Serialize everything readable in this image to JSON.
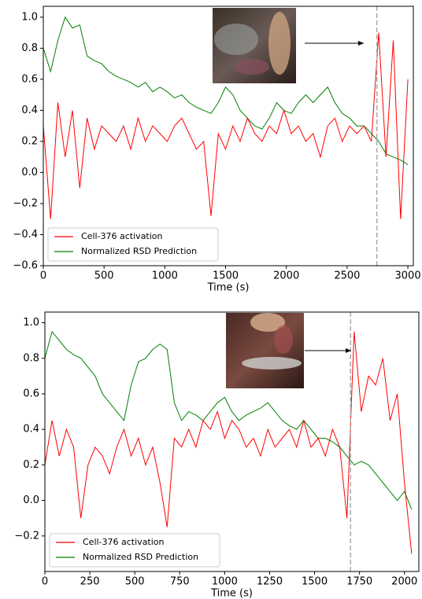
{
  "chart_data": [
    {
      "type": "line",
      "x_label": "Time (s)",
      "x": [
        0,
        60,
        120,
        180,
        240,
        300,
        360,
        420,
        480,
        540,
        600,
        660,
        720,
        780,
        840,
        900,
        960,
        1020,
        1080,
        1140,
        1200,
        1260,
        1320,
        1380,
        1440,
        1500,
        1560,
        1620,
        1680,
        1740,
        1800,
        1860,
        1920,
        1980,
        2040,
        2100,
        2160,
        2220,
        2280,
        2340,
        2400,
        2460,
        2520,
        2580,
        2640,
        2700,
        2760,
        2820,
        2880,
        2940,
        3000
      ],
      "series": [
        {
          "name": "Cell-376 activation",
          "color": "#ff0000",
          "values": [
            0.3,
            -0.3,
            0.45,
            0.1,
            0.4,
            -0.1,
            0.35,
            0.15,
            0.3,
            0.25,
            0.2,
            0.3,
            0.15,
            0.35,
            0.2,
            0.3,
            0.25,
            0.2,
            0.3,
            0.35,
            0.25,
            0.15,
            0.2,
            -0.28,
            0.25,
            0.15,
            0.3,
            0.2,
            0.35,
            0.25,
            0.2,
            0.3,
            0.25,
            0.4,
            0.25,
            0.3,
            0.2,
            0.25,
            0.1,
            0.3,
            0.35,
            0.2,
            0.3,
            0.25,
            0.3,
            0.2,
            0.9,
            0.1,
            0.85,
            -0.3,
            0.6
          ]
        },
        {
          "name": "Normalized RSD Prediction",
          "color": "#008000",
          "values": [
            0.8,
            0.65,
            0.85,
            1.0,
            0.93,
            0.95,
            0.75,
            0.72,
            0.7,
            0.65,
            0.62,
            0.6,
            0.58,
            0.55,
            0.58,
            0.52,
            0.55,
            0.52,
            0.48,
            0.5,
            0.45,
            0.42,
            0.4,
            0.38,
            0.45,
            0.55,
            0.5,
            0.4,
            0.35,
            0.3,
            0.28,
            0.35,
            0.45,
            0.4,
            0.38,
            0.45,
            0.5,
            0.45,
            0.5,
            0.55,
            0.45,
            0.38,
            0.35,
            0.3,
            0.3,
            0.25,
            0.2,
            0.12,
            0.1,
            0.08,
            0.05
          ]
        }
      ],
      "vline": 2745,
      "xlim": [
        0,
        3045
      ],
      "ylim": [
        -0.6,
        1.07
      ],
      "xticks": [
        0,
        500,
        1000,
        1500,
        2000,
        2500,
        3000
      ],
      "yticks": [
        {
          "value": -0.6,
          "label": "−0.6"
        },
        {
          "value": -0.4,
          "label": "−0.4"
        },
        {
          "value": -0.2,
          "label": "−0.2"
        },
        {
          "value": 0,
          "label": "0.0"
        },
        0.2,
        0.4,
        0.6,
        0.8,
        {
          "value": 1,
          "label": "1.0"
        }
      ],
      "legend": "lower left"
    },
    {
      "type": "line",
      "x_label": "Time (s)",
      "x": [
        0,
        40,
        80,
        120,
        160,
        200,
        240,
        280,
        320,
        360,
        400,
        440,
        480,
        520,
        560,
        600,
        640,
        680,
        720,
        760,
        800,
        840,
        880,
        920,
        960,
        1000,
        1040,
        1080,
        1120,
        1160,
        1200,
        1240,
        1280,
        1320,
        1360,
        1400,
        1440,
        1480,
        1520,
        1560,
        1600,
        1640,
        1680,
        1720,
        1760,
        1800,
        1840,
        1880,
        1920,
        1960,
        2000,
        2040
      ],
      "series": [
        {
          "name": "Cell-376 activation",
          "color": "#ff0000",
          "values": [
            0.2,
            0.45,
            0.25,
            0.4,
            0.3,
            -0.1,
            0.2,
            0.3,
            0.25,
            0.15,
            0.3,
            0.4,
            0.25,
            0.35,
            0.2,
            0.3,
            0.1,
            -0.15,
            0.35,
            0.3,
            0.4,
            0.3,
            0.45,
            0.4,
            0.5,
            0.35,
            0.45,
            0.4,
            0.3,
            0.35,
            0.25,
            0.4,
            0.3,
            0.35,
            0.4,
            0.3,
            0.45,
            0.3,
            0.35,
            0.25,
            0.4,
            0.3,
            -0.1,
            0.95,
            0.5,
            0.7,
            0.65,
            0.8,
            0.45,
            0.6,
            0.1,
            -0.3
          ]
        },
        {
          "name": "Normalized RSD Prediction",
          "color": "#008000",
          "values": [
            0.8,
            0.95,
            0.9,
            0.85,
            0.82,
            0.8,
            0.75,
            0.7,
            0.6,
            0.55,
            0.5,
            0.45,
            0.65,
            0.78,
            0.8,
            0.85,
            0.88,
            0.85,
            0.55,
            0.45,
            0.5,
            0.48,
            0.45,
            0.5,
            0.55,
            0.58,
            0.5,
            0.45,
            0.48,
            0.5,
            0.52,
            0.55,
            0.5,
            0.45,
            0.42,
            0.4,
            0.45,
            0.4,
            0.35,
            0.35,
            0.33,
            0.3,
            0.25,
            0.2,
            0.22,
            0.2,
            0.15,
            0.1,
            0.05,
            0.0,
            0.05,
            -0.05
          ]
        }
      ],
      "vline": 1700,
      "xlim": [
        0,
        2080
      ],
      "ylim": [
        -0.4,
        1.06
      ],
      "xticks": [
        0,
        250,
        500,
        750,
        1000,
        1250,
        1500,
        1750,
        2000
      ],
      "yticks": [
        {
          "value": -0.2,
          "label": "−0.2"
        },
        {
          "value": 0,
          "label": "0.0"
        },
        0.2,
        0.4,
        0.6,
        0.8,
        {
          "value": 1,
          "label": "1.0"
        }
      ],
      "legend": "lower left"
    }
  ]
}
